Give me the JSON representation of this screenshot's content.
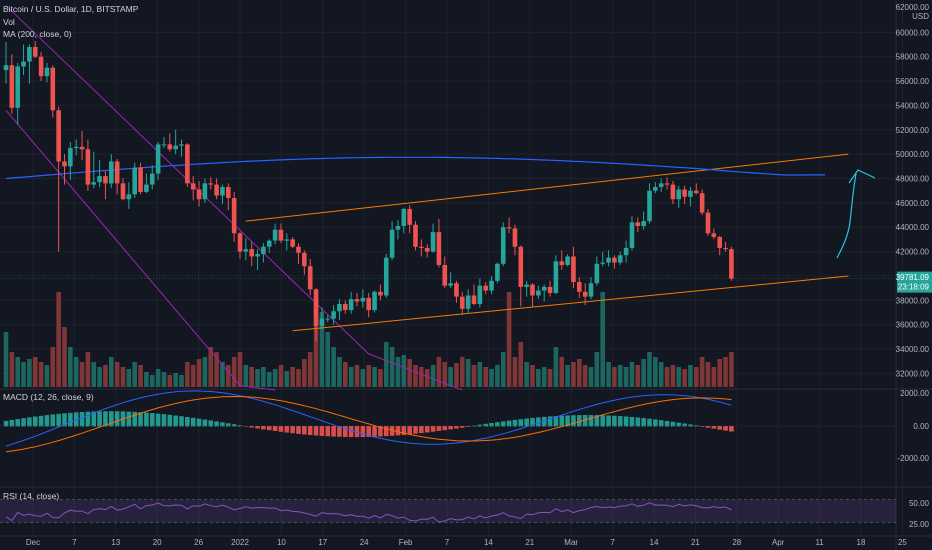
{
  "header": {
    "symbol_line": "Bitcoin / U.S. Dollar, 1D, BITSTAMP",
    "volume_label": "Vol",
    "ma_label": "MA (200, close, 0)",
    "currency": "USD",
    "top_price": "62000.00"
  },
  "price_axis": {
    "ticks": [
      "60000.00",
      "58000.00",
      "56000.00",
      "54000.00",
      "52000.00",
      "50000.00",
      "48000.00",
      "46000.00",
      "44000.00",
      "42000.00",
      "40000.00",
      "38000.00",
      "36000.00",
      "34000.00",
      "32000.00"
    ],
    "current_price": "39781.09",
    "countdown": "23:18:09"
  },
  "macd": {
    "label": "MACD (12, 26, close, 9)",
    "ticks": [
      "2000.00",
      "0.00",
      "-2000.00"
    ]
  },
  "rsi": {
    "label": "RSI (14, close)",
    "ticks": [
      "50.00",
      "25.00"
    ]
  },
  "time_axis": {
    "ticks": [
      "Dec",
      "7",
      "13",
      "20",
      "26",
      "2022",
      "10",
      "17",
      "24",
      "Feb",
      "7",
      "14",
      "21",
      "Mar",
      "7",
      "14",
      "21",
      "28",
      "Apr",
      "11",
      "18",
      "25"
    ]
  },
  "colors": {
    "up": "#26a69a",
    "down": "#ef5350",
    "ma": "#2962ff",
    "channel": "#f57c00",
    "descending": "#9c27b0",
    "arrow": "#26c6da",
    "rsi": "#7e57c2"
  },
  "chart_data": {
    "type": "candlestick",
    "symbol": "BTCUSD",
    "interval": "1D",
    "exchange": "BITSTAMP",
    "price_range": [
      30800,
      62000
    ],
    "ohlc": [
      [
        56900,
        59200,
        55800,
        57300
      ],
      [
        57300,
        58200,
        53300,
        53800
      ],
      [
        53800,
        57500,
        52400,
        57200
      ],
      [
        57200,
        59000,
        56500,
        57600
      ],
      [
        57600,
        59000,
        55800,
        58800
      ],
      [
        58800,
        59300,
        57900,
        58000
      ],
      [
        58000,
        58400,
        56000,
        56400
      ],
      [
        56400,
        57500,
        55900,
        57100
      ],
      [
        57100,
        57300,
        53000,
        53600
      ],
      [
        53600,
        53900,
        42000,
        49400
      ],
      [
        49400,
        50000,
        47500,
        49000
      ],
      [
        49000,
        51000,
        47900,
        50500
      ],
      [
        50500,
        51200,
        49900,
        50600
      ],
      [
        50600,
        51900,
        49500,
        50400
      ],
      [
        50400,
        51200,
        47000,
        47500
      ],
      [
        47500,
        50200,
        47200,
        47700
      ],
      [
        47700,
        49500,
        47300,
        48200
      ],
      [
        48200,
        48600,
        46300,
        47600
      ],
      [
        47600,
        50000,
        47200,
        49400
      ],
      [
        49400,
        49600,
        46700,
        47600
      ],
      [
        47600,
        48000,
        46200,
        46300
      ],
      [
        46300,
        47700,
        45500,
        46700
      ],
      [
        46700,
        49300,
        46400,
        48900
      ],
      [
        48900,
        49300,
        46700,
        46900
      ],
      [
        46900,
        48400,
        46800,
        47500
      ],
      [
        47500,
        49100,
        47100,
        48400
      ],
      [
        48400,
        51000,
        47900,
        50800
      ],
      [
        50800,
        51400,
        50500,
        50800
      ],
      [
        50800,
        51700,
        50200,
        50400
      ],
      [
        50400,
        52000,
        50000,
        50700
      ],
      [
        50700,
        51200,
        49800,
        50800
      ],
      [
        50800,
        50900,
        47300,
        47600
      ],
      [
        47600,
        48200,
        46200,
        47100
      ],
      [
        47100,
        47800,
        45700,
        46300
      ],
      [
        46300,
        48000,
        46000,
        47600
      ],
      [
        47600,
        48100,
        47100,
        47500
      ],
      [
        47500,
        48000,
        46300,
        46600
      ],
      [
        46600,
        47500,
        45900,
        47300
      ],
      [
        47300,
        47600,
        45400,
        46400
      ],
      [
        46400,
        46900,
        42800,
        43500
      ],
      [
        43500,
        43600,
        41400,
        42000
      ],
      [
        42000,
        43100,
        41300,
        42200
      ],
      [
        42200,
        42800,
        40800,
        41600
      ],
      [
        41600,
        42200,
        40500,
        41800
      ],
      [
        41800,
        42700,
        41100,
        42400
      ],
      [
        42400,
        43000,
        41900,
        42900
      ],
      [
        42900,
        44300,
        42600,
        43800
      ],
      [
        43800,
        44300,
        42700,
        42900
      ],
      [
        42900,
        43500,
        42100,
        43000
      ],
      [
        43000,
        43200,
        42300,
        42400
      ],
      [
        42400,
        42700,
        41000,
        41900
      ],
      [
        41900,
        42100,
        40100,
        40800
      ],
      [
        40800,
        41400,
        38400,
        38900
      ],
      [
        38900,
        39000,
        34600,
        35900
      ],
      [
        35900,
        37400,
        35600,
        36500
      ],
      [
        36500,
        36800,
        36200,
        36500
      ],
      [
        36500,
        37600,
        36000,
        37100
      ],
      [
        37100,
        38100,
        36400,
        37700
      ],
      [
        37700,
        38000,
        36900,
        37200
      ],
      [
        37200,
        38700,
        36900,
        38100
      ],
      [
        38100,
        38600,
        37500,
        37900
      ],
      [
        37900,
        38900,
        37400,
        38200
      ],
      [
        38200,
        38600,
        36600,
        37200
      ],
      [
        37200,
        38800,
        37000,
        38700
      ],
      [
        38700,
        39300,
        38000,
        38400
      ],
      [
        38400,
        41800,
        38200,
        41500
      ],
      [
        41500,
        44500,
        41300,
        43800
      ],
      [
        43800,
        44600,
        43000,
        44100
      ],
      [
        44100,
        45600,
        43500,
        45500
      ],
      [
        45500,
        45800,
        43500,
        44200
      ],
      [
        44200,
        44500,
        42100,
        42400
      ],
      [
        42400,
        43000,
        41600,
        42300
      ],
      [
        42300,
        42600,
        41500,
        42000
      ],
      [
        42000,
        44300,
        41900,
        43600
      ],
      [
        43600,
        44700,
        40700,
        40900
      ],
      [
        40900,
        41600,
        39000,
        39200
      ],
      [
        39200,
        40300,
        39000,
        39400
      ],
      [
        39400,
        39600,
        37800,
        38300
      ],
      [
        38300,
        38700,
        36800,
        37300
      ],
      [
        37300,
        38900,
        36900,
        38400
      ],
      [
        38400,
        39300,
        37600,
        37700
      ],
      [
        37700,
        39800,
        37400,
        39200
      ],
      [
        39200,
        39500,
        38500,
        38800
      ],
      [
        38800,
        40000,
        38500,
        39600
      ],
      [
        39600,
        41100,
        39400,
        41000
      ],
      [
        41000,
        44400,
        40800,
        44000
      ],
      [
        44000,
        44800,
        43500,
        43900
      ],
      [
        43900,
        44200,
        41700,
        42400
      ],
      [
        42400,
        42500,
        37500,
        39100
      ],
      [
        39100,
        39600,
        38300,
        39300
      ],
      [
        39300,
        39400,
        37400,
        38400
      ],
      [
        38400,
        39200,
        38100,
        38800
      ],
      [
        38800,
        39300,
        37900,
        39100
      ],
      [
        39100,
        39600,
        38300,
        38600
      ],
      [
        38600,
        41700,
        38500,
        41200
      ],
      [
        41200,
        42100,
        40500,
        40900
      ],
      [
        40900,
        41800,
        40800,
        41600
      ],
      [
        41600,
        42400,
        39000,
        39500
      ],
      [
        39500,
        39900,
        38200,
        38700
      ],
      [
        38700,
        39400,
        37600,
        38300
      ],
      [
        38300,
        39900,
        38100,
        39400
      ],
      [
        39400,
        41600,
        39200,
        41000
      ],
      [
        41000,
        42000,
        40800,
        41100
      ],
      [
        41100,
        42100,
        40800,
        41500
      ],
      [
        41500,
        41700,
        40600,
        41100
      ],
      [
        41100,
        42000,
        40900,
        41700
      ],
      [
        41700,
        42900,
        41100,
        42300
      ],
      [
        42300,
        44900,
        42100,
        44400
      ],
      [
        44400,
        44800,
        43600,
        44100
      ],
      [
        44100,
        45300,
        43800,
        44500
      ],
      [
        44500,
        47600,
        44300,
        47000
      ],
      [
        47000,
        47700,
        46800,
        47300
      ],
      [
        47300,
        48000,
        46900,
        47600
      ],
      [
        47600,
        48100,
        47100,
        47500
      ],
      [
        47500,
        47800,
        45900,
        46300
      ],
      [
        46300,
        47400,
        45600,
        47100
      ],
      [
        47100,
        47400,
        45900,
        46500
      ],
      [
        46500,
        47300,
        45700,
        47000
      ],
      [
        47000,
        47600,
        46700,
        46800
      ],
      [
        46800,
        47100,
        45000,
        45200
      ],
      [
        45200,
        45500,
        43300,
        43500
      ],
      [
        43500,
        43900,
        43000,
        43200
      ],
      [
        43200,
        43300,
        41700,
        42300
      ],
      [
        42300,
        42800,
        42000,
        42200
      ],
      [
        42200,
        42400,
        39600,
        39781
      ]
    ],
    "volume_relative": [
      0.55,
      0.35,
      0.3,
      0.25,
      0.28,
      0.3,
      0.25,
      0.22,
      0.4,
      0.95,
      0.6,
      0.4,
      0.3,
      0.25,
      0.35,
      0.25,
      0.2,
      0.22,
      0.3,
      0.25,
      0.2,
      0.18,
      0.25,
      0.22,
      0.15,
      0.12,
      0.18,
      0.15,
      0.12,
      0.14,
      0.12,
      0.25,
      0.22,
      0.28,
      0.3,
      0.4,
      0.35,
      0.25,
      0.22,
      0.3,
      0.35,
      0.22,
      0.2,
      0.18,
      0.2,
      0.15,
      0.18,
      0.22,
      0.16,
      0.2,
      0.18,
      0.28,
      0.35,
      0.85,
      0.75,
      0.55,
      0.4,
      0.3,
      0.25,
      0.2,
      0.22,
      0.18,
      0.22,
      0.2,
      0.18,
      0.45,
      0.4,
      0.3,
      0.32,
      0.28,
      0.22,
      0.2,
      0.18,
      0.22,
      0.3,
      0.25,
      0.2,
      0.24,
      0.3,
      0.28,
      0.22,
      0.25,
      0.2,
      0.18,
      0.22,
      0.35,
      0.95,
      0.3,
      0.45,
      0.25,
      0.22,
      0.18,
      0.2,
      0.18,
      0.4,
      0.3,
      0.22,
      0.25,
      0.28,
      0.22,
      0.2,
      0.35,
      0.95,
      0.25,
      0.2,
      0.22,
      0.2,
      0.25,
      0.22,
      0.28,
      0.35,
      0.3,
      0.25,
      0.2,
      0.22,
      0.2,
      0.18,
      0.22,
      0.2,
      0.3,
      0.25,
      0.2,
      0.28,
      0.3,
      0.35
    ],
    "ma200": [
      48000,
      49800
    ],
    "ascending_channel": {
      "upper": [
        [
          41,
          44500
        ],
        [
          144,
          50000
        ]
      ],
      "lower": [
        [
          49,
          35500
        ],
        [
          144,
          40000
        ]
      ]
    },
    "descending_channel": {
      "upper": [
        [
          0,
          62200
        ],
        [
          62,
          33600
        ]
      ],
      "lower": [
        [
          0,
          53600
        ],
        [
          40,
          31000
        ]
      ]
    },
    "rsi_levels": [
      70,
      30
    ]
  }
}
